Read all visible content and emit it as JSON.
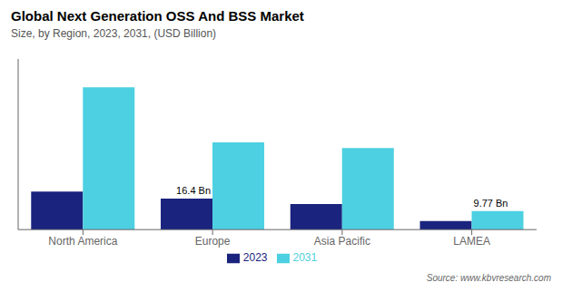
{
  "chart_data": {
    "type": "bar",
    "title": "Global Next Generation OSS And BSS Market",
    "subtitle": "Size, by Region, 2023, 2031, (USD Billion)",
    "source": "Source: www.kbvresearch.com",
    "categories": [
      "North America",
      "Europe",
      "Asia Pacific",
      "LAMEA"
    ],
    "series": [
      {
        "name": "2023",
        "color": "#1a237e",
        "values": [
          20.0,
          16.4,
          13.5,
          4.5
        ]
      },
      {
        "name": "2031",
        "color": "#4dd0e1",
        "values": [
          75.0,
          46.0,
          43.0,
          9.77
        ]
      }
    ],
    "annotations": [
      {
        "text": "16.4 Bn",
        "category": "Europe",
        "series": "2023",
        "value": 16.4
      },
      {
        "text": "9.77 Bn",
        "category": "LAMEA",
        "series": "2031",
        "value": 9.77
      }
    ],
    "ylim": [
      0,
      90
    ],
    "grid": false,
    "legend": "bottom",
    "tick_labels": "x"
  }
}
